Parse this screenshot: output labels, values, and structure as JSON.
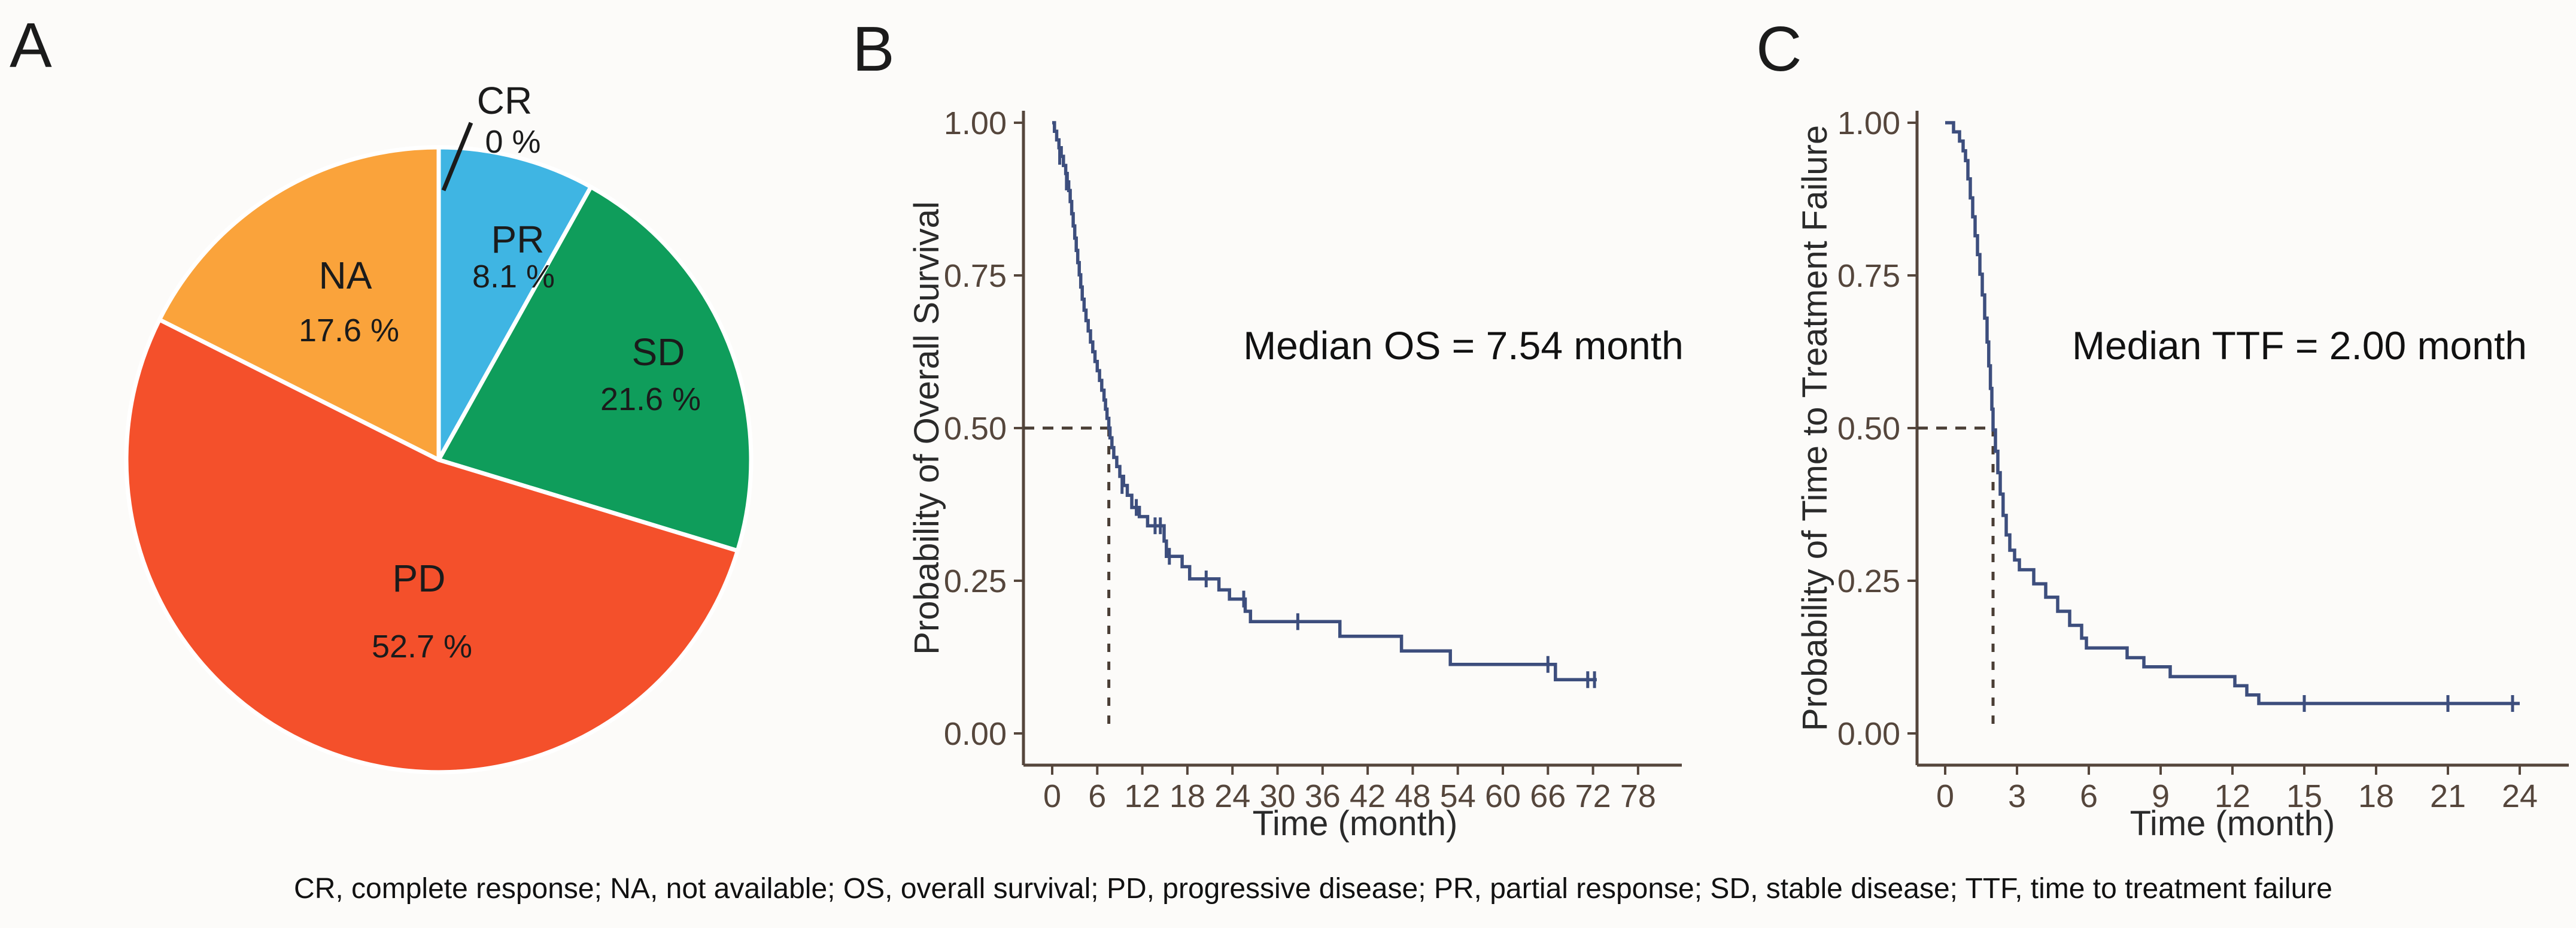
{
  "figure": {
    "panel_labels": {
      "a": "A",
      "b": "B",
      "c": "C"
    },
    "caption": "CR, complete response; NA, not available; OS, overall survival; PD, progressive disease; PR, partial response; SD, stable disease; TTF, time to treatment failure",
    "background_color": "#fcfbf9",
    "axis_color": "#55463c",
    "curve_color": "#3d4e7d",
    "dash_color": "#4a3e35"
  },
  "chart_data": [
    {
      "id": "response-pie",
      "type": "pie",
      "panel": "A",
      "categories": [
        "CR",
        "PR",
        "SD",
        "PD",
        "NA"
      ],
      "values": [
        0,
        8.1,
        21.6,
        52.7,
        17.6
      ],
      "labels": [
        "0 %",
        "8.1 %",
        "21.6 %",
        "52.7 %",
        "17.6 %"
      ],
      "colors": [
        "#9e9e9e",
        "#3fb5e3",
        "#0f9d5b",
        "#f4502b",
        "#faa33b"
      ],
      "start_angle_deg": 0,
      "direction": "clockwise",
      "slice_border_color": "#ffffff"
    },
    {
      "id": "overall-survival-km",
      "type": "line",
      "panel": "B",
      "title": "Median OS = 7.54 month",
      "xlabel": "Time (month)",
      "ylabel": "Probability of Overall Survival",
      "xticks": [
        0,
        6,
        12,
        18,
        24,
        30,
        36,
        42,
        48,
        54,
        60,
        66,
        72,
        78
      ],
      "yticks": [
        1.0,
        0.75,
        0.5,
        0.25,
        0.0
      ],
      "xlim": [
        0,
        80
      ],
      "ylim": [
        0,
        1
      ],
      "grid": false,
      "legend": "none",
      "median": {
        "x": 7.54,
        "y": 0.5
      },
      "curve_end_x": 72.5,
      "steps": [
        [
          0,
          1.0
        ],
        [
          0.3,
          0.986
        ],
        [
          0.6,
          0.972
        ],
        [
          0.9,
          0.959
        ],
        [
          1.2,
          0.945
        ],
        [
          1.5,
          0.93
        ],
        [
          1.8,
          0.917
        ],
        [
          2.0,
          0.903
        ],
        [
          2.2,
          0.889
        ],
        [
          2.4,
          0.871
        ],
        [
          2.6,
          0.851
        ],
        [
          2.8,
          0.831
        ],
        [
          3.0,
          0.811
        ],
        [
          3.2,
          0.791
        ],
        [
          3.4,
          0.771
        ],
        [
          3.6,
          0.751
        ],
        [
          3.8,
          0.731
        ],
        [
          4.0,
          0.711
        ],
        [
          4.25,
          0.693
        ],
        [
          4.5,
          0.676
        ],
        [
          4.8,
          0.659
        ],
        [
          5.1,
          0.641
        ],
        [
          5.4,
          0.625
        ],
        [
          5.7,
          0.609
        ],
        [
          6.0,
          0.594
        ],
        [
          6.3,
          0.578
        ],
        [
          6.6,
          0.562
        ],
        [
          6.9,
          0.546
        ],
        [
          7.1,
          0.531
        ],
        [
          7.3,
          0.516
        ],
        [
          7.54,
          0.5
        ],
        [
          7.7,
          0.484
        ],
        [
          7.95,
          0.468
        ],
        [
          8.2,
          0.452
        ],
        [
          8.6,
          0.437
        ],
        [
          9.0,
          0.421
        ],
        [
          9.5,
          0.406
        ],
        [
          10.0,
          0.39
        ],
        [
          10.6,
          0.37
        ],
        [
          11.6,
          0.355
        ],
        [
          12.7,
          0.34
        ],
        [
          14.9,
          0.315
        ],
        [
          15.2,
          0.29
        ],
        [
          17.3,
          0.273
        ],
        [
          18.3,
          0.253
        ],
        [
          22.2,
          0.235
        ],
        [
          23.6,
          0.22
        ],
        [
          25.7,
          0.2
        ],
        [
          26.4,
          0.183
        ],
        [
          38.3,
          0.159
        ],
        [
          46.5,
          0.135
        ],
        [
          53.0,
          0.113
        ],
        [
          67.0,
          0.088
        ]
      ],
      "censors": [
        [
          1.0,
          0.945
        ],
        [
          1.9,
          0.903
        ],
        [
          9.3,
          0.406
        ],
        [
          11.2,
          0.37
        ],
        [
          13.7,
          0.34
        ],
        [
          14.4,
          0.34
        ],
        [
          15.6,
          0.29
        ],
        [
          20.5,
          0.253
        ],
        [
          25.5,
          0.22
        ],
        [
          32.7,
          0.183
        ],
        [
          66.0,
          0.113
        ],
        [
          71.3,
          0.088
        ],
        [
          72.2,
          0.088
        ]
      ]
    },
    {
      "id": "time-to-treatment-failure-km",
      "type": "line",
      "panel": "C",
      "title": "Median TTF = 2.00 month",
      "xlabel": "Time (month)",
      "ylabel": "Probability of Time to Treatment Failure",
      "xticks": [
        0,
        3,
        6,
        9,
        12,
        15,
        18,
        21,
        24
      ],
      "yticks": [
        1.0,
        0.75,
        0.5,
        0.25,
        0.0
      ],
      "xlim": [
        0,
        26
      ],
      "ylim": [
        0,
        1
      ],
      "grid": false,
      "legend": "none",
      "median": {
        "x": 2.0,
        "y": 0.5
      },
      "curve_end_x": 24.0,
      "steps": [
        [
          0,
          1.0
        ],
        [
          0.35,
          0.985
        ],
        [
          0.6,
          0.97
        ],
        [
          0.75,
          0.954
        ],
        [
          0.85,
          0.938
        ],
        [
          0.95,
          0.908
        ],
        [
          1.05,
          0.877
        ],
        [
          1.15,
          0.846
        ],
        [
          1.25,
          0.815
        ],
        [
          1.35,
          0.784
        ],
        [
          1.45,
          0.752
        ],
        [
          1.55,
          0.718
        ],
        [
          1.65,
          0.68
        ],
        [
          1.75,
          0.641
        ],
        [
          1.82,
          0.602
        ],
        [
          1.89,
          0.565
        ],
        [
          1.95,
          0.531
        ],
        [
          2.0,
          0.497
        ],
        [
          2.1,
          0.462
        ],
        [
          2.2,
          0.427
        ],
        [
          2.3,
          0.392
        ],
        [
          2.42,
          0.357
        ],
        [
          2.55,
          0.325
        ],
        [
          2.7,
          0.3
        ],
        [
          2.9,
          0.284
        ],
        [
          3.1,
          0.268
        ],
        [
          3.7,
          0.245
        ],
        [
          4.2,
          0.223
        ],
        [
          4.7,
          0.2
        ],
        [
          5.2,
          0.177
        ],
        [
          5.7,
          0.156
        ],
        [
          5.9,
          0.14
        ],
        [
          7.6,
          0.124
        ],
        [
          8.3,
          0.109
        ],
        [
          9.4,
          0.093
        ],
        [
          12.1,
          0.078
        ],
        [
          12.6,
          0.063
        ],
        [
          13.1,
          0.049
        ]
      ],
      "censors": [
        [
          15.0,
          0.049
        ],
        [
          21.0,
          0.049
        ],
        [
          23.7,
          0.049
        ]
      ]
    }
  ]
}
